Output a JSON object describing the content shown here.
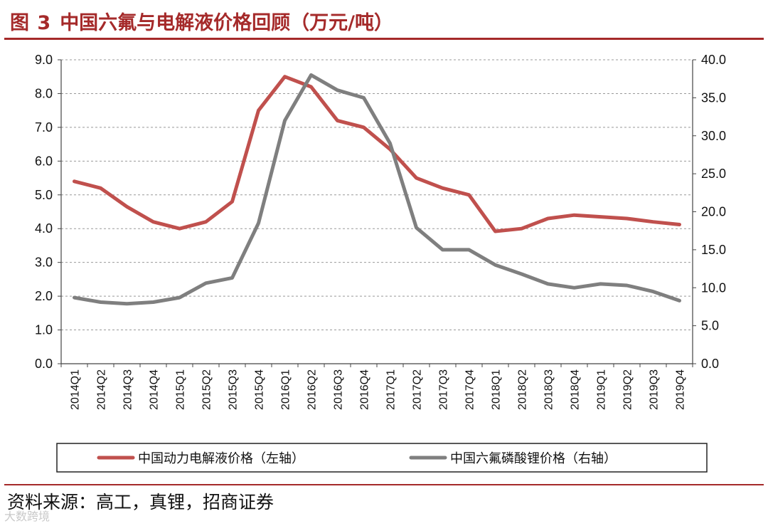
{
  "header": {
    "figure_number": "图 3",
    "title": "中国六氟与电解液价格回顾（万元/吨）"
  },
  "footer": {
    "source": "资料来源：高工，真锂，招商证券",
    "watermark": "大数跨境"
  },
  "colors": {
    "accent": "#a52a2a",
    "series_left": "#c0504d",
    "series_right": "#7f7f7f",
    "grid": "#999999"
  },
  "chart_data": {
    "type": "line",
    "categories": [
      "2014Q1",
      "2014Q2",
      "2014Q3",
      "2014Q4",
      "2015Q1",
      "2015Q2",
      "2015Q3",
      "2015Q4",
      "2016Q1",
      "2016Q2",
      "2016Q3",
      "2016Q4",
      "2017Q1",
      "2017Q2",
      "2017Q3",
      "2017Q4",
      "2018Q1",
      "2018Q2",
      "2018Q3",
      "2018Q4",
      "2019Q1",
      "2019Q2",
      "2019Q3",
      "2019Q4"
    ],
    "y_left": {
      "min": 0,
      "max": 9,
      "ticks": [
        "0.0",
        "1.0",
        "2.0",
        "3.0",
        "4.0",
        "5.0",
        "6.0",
        "7.0",
        "8.0",
        "9.0"
      ]
    },
    "y_right": {
      "min": 0,
      "max": 40,
      "ticks": [
        "0.0",
        "5.0",
        "10.0",
        "15.0",
        "20.0",
        "25.0",
        "30.0",
        "35.0",
        "40.0"
      ]
    },
    "grid": true,
    "legend_position": "bottom",
    "series": [
      {
        "name": "中国动力电解液价格（左轴）",
        "axis": "left",
        "values": [
          5.4,
          5.2,
          4.65,
          4.2,
          4.0,
          4.2,
          4.8,
          7.5,
          8.5,
          8.2,
          7.2,
          7.0,
          6.35,
          5.5,
          5.2,
          5.0,
          3.92,
          4.0,
          4.3,
          4.4,
          4.35,
          4.3,
          4.2,
          4.12
        ]
      },
      {
        "name": "中国六氟磷酸锂价格（右轴）",
        "axis": "right",
        "values": [
          8.7,
          8.1,
          7.9,
          8.1,
          8.7,
          10.6,
          11.3,
          18.5,
          32.0,
          38.0,
          36.0,
          35.0,
          29.0,
          17.9,
          15.0,
          15.0,
          13.0,
          11.8,
          10.5,
          10.0,
          10.5,
          10.3,
          9.5,
          8.3
        ]
      }
    ]
  }
}
